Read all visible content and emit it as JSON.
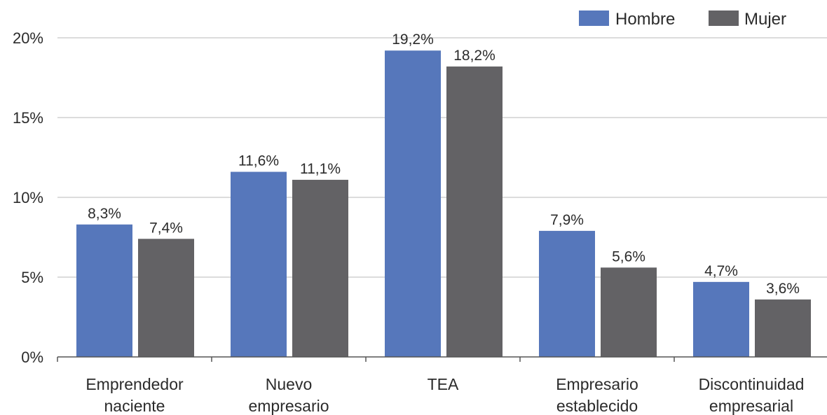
{
  "chart_data": {
    "type": "bar",
    "categories": [
      [
        "Emprendedor",
        "naciente"
      ],
      [
        "Nuevo",
        "empresario"
      ],
      [
        "TEA"
      ],
      [
        "Empresario",
        "establecido"
      ],
      [
        "Discontinuidad",
        "empresarial"
      ]
    ],
    "series": [
      {
        "name": "Hombre",
        "color": "#5677bb",
        "values": [
          8.3,
          11.6,
          19.2,
          7.9,
          4.7
        ],
        "labels": [
          "8,3%",
          "11,6%",
          "19,2%",
          "7,9%",
          "4,7%"
        ]
      },
      {
        "name": "Mujer",
        "color": "#636265",
        "values": [
          7.4,
          11.1,
          18.2,
          5.6,
          3.6
        ],
        "labels": [
          "7,4%",
          "11,1%",
          "18,2%",
          "5,6%",
          "3,6%"
        ]
      }
    ],
    "yticks": [
      0,
      5,
      10,
      15,
      20
    ],
    "ytick_labels": [
      "0%",
      "5%",
      "10%",
      "15%",
      "20%"
    ],
    "ylim": [
      0,
      20
    ],
    "grid": true,
    "legend": "top-right"
  }
}
